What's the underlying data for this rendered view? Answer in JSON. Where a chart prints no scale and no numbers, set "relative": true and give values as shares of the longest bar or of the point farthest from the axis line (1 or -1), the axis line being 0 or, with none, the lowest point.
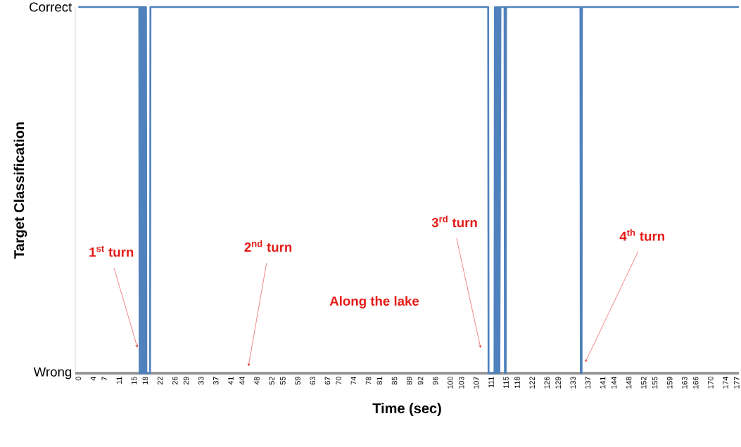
{
  "chart_data": {
    "type": "line",
    "xlabel": "Time (sec)",
    "ylabel": "Target Classification",
    "relative": true,
    "x": [
      0,
      16.4,
      16.5,
      16.7,
      16.8,
      17.0,
      17.1,
      17.3,
      17.4,
      17.6,
      17.7,
      17.9,
      18.0,
      18.2,
      18.3,
      19.3,
      19.4,
      110.2,
      110.3,
      111.9,
      112.0,
      112.2,
      112.5,
      112.7,
      113.0,
      113.2,
      113.5,
      114.6,
      114.7,
      114.9,
      115.0,
      135.0,
      135.1,
      135.3,
      135.4,
      177.6
    ],
    "values": [
      1,
      1,
      0,
      1,
      0,
      1,
      0,
      1,
      0,
      1,
      0,
      1,
      0,
      1,
      0,
      0,
      1,
      1,
      0,
      0,
      1,
      0,
      1,
      0,
      1,
      0,
      1,
      1,
      0,
      0,
      1,
      1,
      0,
      0,
      1,
      1
    ],
    "color": "#4f81bd",
    "line_style": "solid",
    "marker": "none",
    "grid": false,
    "xlim": [
      -0.8,
      177.6
    ],
    "xticks": [
      0,
      4,
      7,
      11,
      15,
      18,
      22,
      26,
      29,
      33,
      37,
      41,
      44,
      48,
      52,
      55,
      59,
      63,
      67,
      70,
      74,
      78,
      81,
      85,
      89,
      92,
      96,
      100,
      103,
      107,
      111,
      115,
      118,
      122,
      126,
      129,
      133,
      137,
      141,
      144,
      148,
      152,
      155,
      159,
      163,
      166,
      170,
      174,
      177
    ],
    "annotations": [
      {
        "text": "1$^{st}$ turn",
        "x": 15.9,
        "y": 0.07
      },
      "2$^{nd}$ turn",
      "3$^{rd}$ turn",
      {
        "text": "4$^{th}$ turn",
        "x": 136.3,
        "y": 0.03
      },
      "Along the lake",
      "Correct",
      "Wrong"
    ]
  }
}
